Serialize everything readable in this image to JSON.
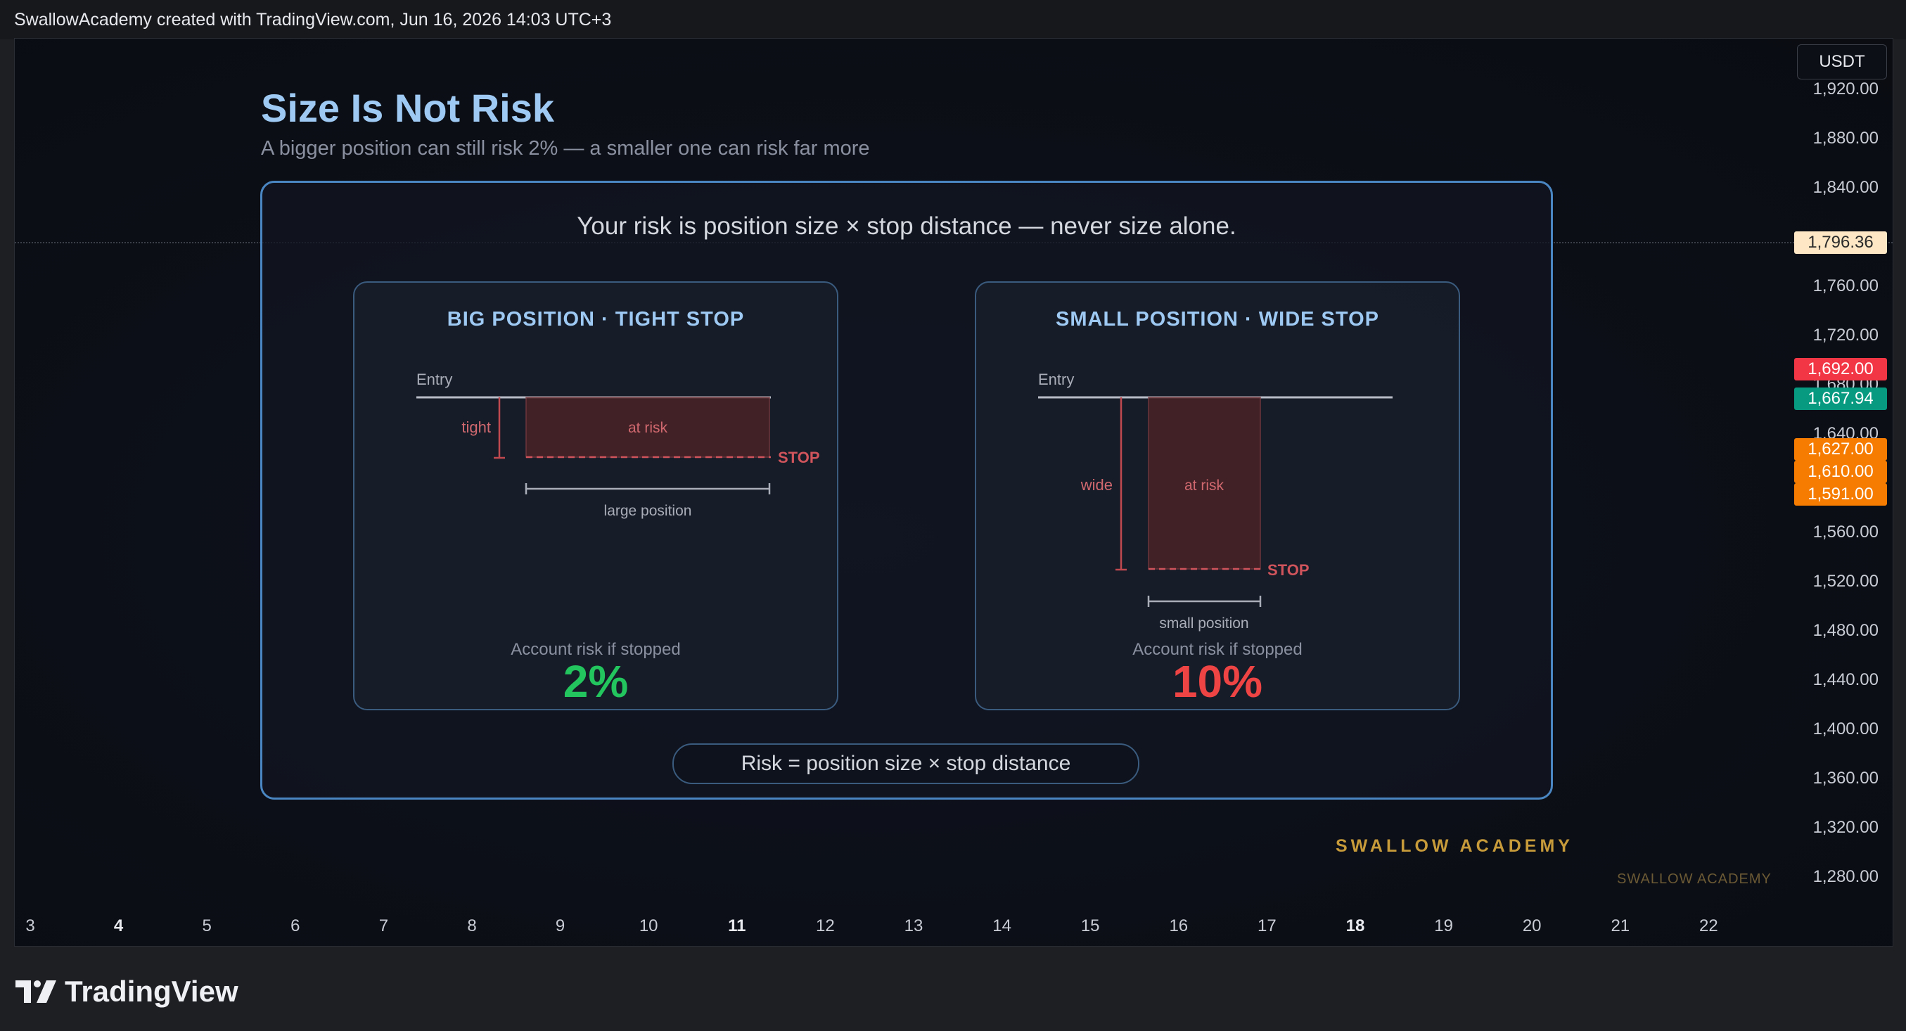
{
  "header": {
    "attribution": "SwallowAcademy created with TradingView.com, Jun 16, 2026 14:03 UTC+3"
  },
  "chart": {
    "currency": "USDT",
    "y_ticks": [
      "1,920.00",
      "1,880.00",
      "1,840.00",
      "1,760.00",
      "1,720.00",
      "1,680.00",
      "1,640.00",
      "1,560.00",
      "1,520.00",
      "1,480.00",
      "1,440.00",
      "1,400.00",
      "1,360.00",
      "1,320.00",
      "1,280.00"
    ],
    "price_tags": [
      {
        "label": "1,796.36",
        "bg": "#fde7c4",
        "fg": "#2b2b2b"
      },
      {
        "label": "1,692.00",
        "bg": "#f23645",
        "fg": "#ffffff"
      },
      {
        "label": "1,667.94",
        "bg": "#089981",
        "fg": "#ffffff"
      },
      {
        "label": "1,627.00",
        "bg": "#f57c00",
        "fg": "#ffffff"
      },
      {
        "label": "1,610.00",
        "bg": "#f57c00",
        "fg": "#ffffff"
      },
      {
        "label": "1,591.00",
        "bg": "#f57c00",
        "fg": "#ffffff"
      }
    ],
    "x_ticks": [
      {
        "label": "3",
        "bold": false
      },
      {
        "label": "4",
        "bold": true
      },
      {
        "label": "5",
        "bold": false
      },
      {
        "label": "6",
        "bold": false
      },
      {
        "label": "7",
        "bold": false
      },
      {
        "label": "8",
        "bold": false
      },
      {
        "label": "9",
        "bold": false
      },
      {
        "label": "10",
        "bold": false
      },
      {
        "label": "11",
        "bold": true
      },
      {
        "label": "12",
        "bold": false
      },
      {
        "label": "13",
        "bold": false
      },
      {
        "label": "14",
        "bold": false
      },
      {
        "label": "15",
        "bold": false
      },
      {
        "label": "16",
        "bold": false
      },
      {
        "label": "17",
        "bold": false
      },
      {
        "label": "18",
        "bold": true
      },
      {
        "label": "19",
        "bold": false
      },
      {
        "label": "20",
        "bold": false
      },
      {
        "label": "21",
        "bold": false
      },
      {
        "label": "22",
        "bold": false
      }
    ]
  },
  "infographic": {
    "title": "Size Is Not Risk",
    "subtitle": "A bigger position can still risk 2% — a smaller one can risk far more",
    "headline": "Your risk is position size × stop distance — never size alone.",
    "left": {
      "title": "BIG POSITION · TIGHT STOP",
      "entry": "Entry",
      "stop_distance": "tight",
      "at_risk": "at risk",
      "stop": "STOP",
      "position": "large position",
      "risk_label": "Account risk if stopped",
      "risk_value": "2%"
    },
    "right": {
      "title": "SMALL POSITION · WIDE STOP",
      "entry": "Entry",
      "stop_distance": "wide",
      "at_risk": "at risk",
      "stop": "STOP",
      "position": "small position",
      "risk_label": "Account risk if stopped",
      "risk_value": "10%"
    },
    "formula": "Risk = position size × stop distance",
    "brand": "SWALLOW ACADEMY",
    "watermark": "SWALLOW ACADEMY",
    "colors": {
      "accent_blue": "#9ec9f2",
      "risk_low": "#22c55e",
      "risk_high": "#ef4444",
      "brand_gold": "#c79a3a"
    }
  },
  "footer": {
    "logo_text": "TradingView"
  }
}
